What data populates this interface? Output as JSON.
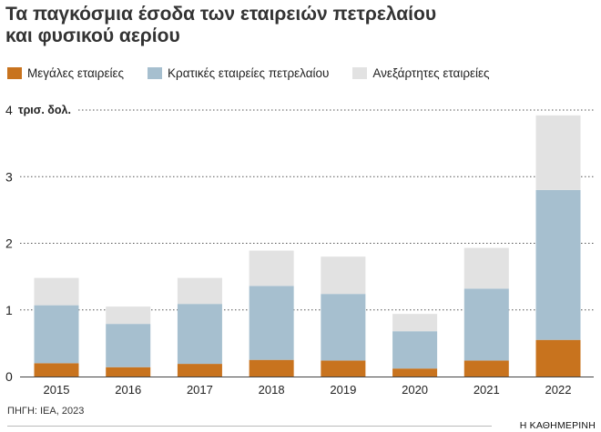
{
  "chart_data": {
    "type": "bar",
    "stacked": true,
    "title_line1": "Τα παγκόσμια έσοδα των εταιρειών πετρελαίου",
    "title_line2": "και φυσικού αερίου",
    "unit_label": "τρισ. δολ.",
    "categories": [
      "2015",
      "2016",
      "2017",
      "2018",
      "2019",
      "2020",
      "2021",
      "2022"
    ],
    "series": [
      {
        "name": "Μεγάλες εταιρείες",
        "color": "#c8731e",
        "values": [
          0.2,
          0.14,
          0.19,
          0.25,
          0.24,
          0.12,
          0.24,
          0.55
        ]
      },
      {
        "name": "Κρατικές εταιρείες πετρελαίου",
        "color": "#a6bfcf",
        "values": [
          0.87,
          0.65,
          0.9,
          1.11,
          1.0,
          0.56,
          1.08,
          2.25
        ]
      },
      {
        "name": "Ανεξάρτητες εταιρείες",
        "color": "#e2e2e2",
        "values": [
          0.41,
          0.26,
          0.39,
          0.53,
          0.56,
          0.26,
          0.61,
          1.12
        ]
      }
    ],
    "yticks": [
      0,
      1,
      2,
      3,
      4
    ],
    "ylim": [
      0,
      4
    ],
    "grid": true,
    "legend_position": "top-left"
  },
  "source": "ΠΗΓΗ: IEA, 2023",
  "brand": "Η ΚΑΘΗΜΕΡΙΝΗ"
}
